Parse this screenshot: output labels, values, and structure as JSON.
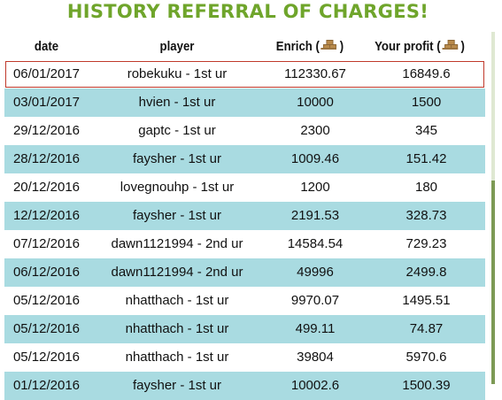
{
  "title": "HISTORY REFERRAL OF CHARGES!",
  "header": {
    "date": "date",
    "player": "player",
    "enrich": "Enrich (",
    "enrich_close": ")",
    "profit": "Your profit (",
    "profit_close": ")"
  },
  "colors": {
    "title": "#6fa52b",
    "alt_row": "#a9dbe1",
    "selected_border": "#c0392b"
  },
  "rows": [
    {
      "date": "06/01/2017",
      "player": "robekuku - 1st ur",
      "enrich": "112330.67",
      "profit": "16849.6"
    },
    {
      "date": "03/01/2017",
      "player": "hvien - 1st ur",
      "enrich": "10000",
      "profit": "1500"
    },
    {
      "date": "29/12/2016",
      "player": "gaptc - 1st ur",
      "enrich": "2300",
      "profit": "345"
    },
    {
      "date": "28/12/2016",
      "player": "faysher - 1st ur",
      "enrich": "1009.46",
      "profit": "151.42"
    },
    {
      "date": "20/12/2016",
      "player": "lovegnouhp - 1st ur",
      "enrich": "1200",
      "profit": "180"
    },
    {
      "date": "12/12/2016",
      "player": "faysher - 1st ur",
      "enrich": "2191.53",
      "profit": "328.73"
    },
    {
      "date": "07/12/2016",
      "player": "dawn1121994 - 2nd ur",
      "enrich": "14584.54",
      "profit": "729.23"
    },
    {
      "date": "06/12/2016",
      "player": "dawn1121994 - 2nd ur",
      "enrich": "49996",
      "profit": "2499.8"
    },
    {
      "date": "05/12/2016",
      "player": "nhatthach - 1st ur",
      "enrich": "9970.07",
      "profit": "1495.51"
    },
    {
      "date": "05/12/2016",
      "player": "nhatthach - 1st ur",
      "enrich": "499.11",
      "profit": "74.87"
    },
    {
      "date": "05/12/2016",
      "player": "nhatthach - 1st ur",
      "enrich": "39804",
      "profit": "5970.6"
    },
    {
      "date": "01/12/2016",
      "player": "faysher - 1st ur",
      "enrich": "10002.6",
      "profit": "1500.39"
    }
  ]
}
